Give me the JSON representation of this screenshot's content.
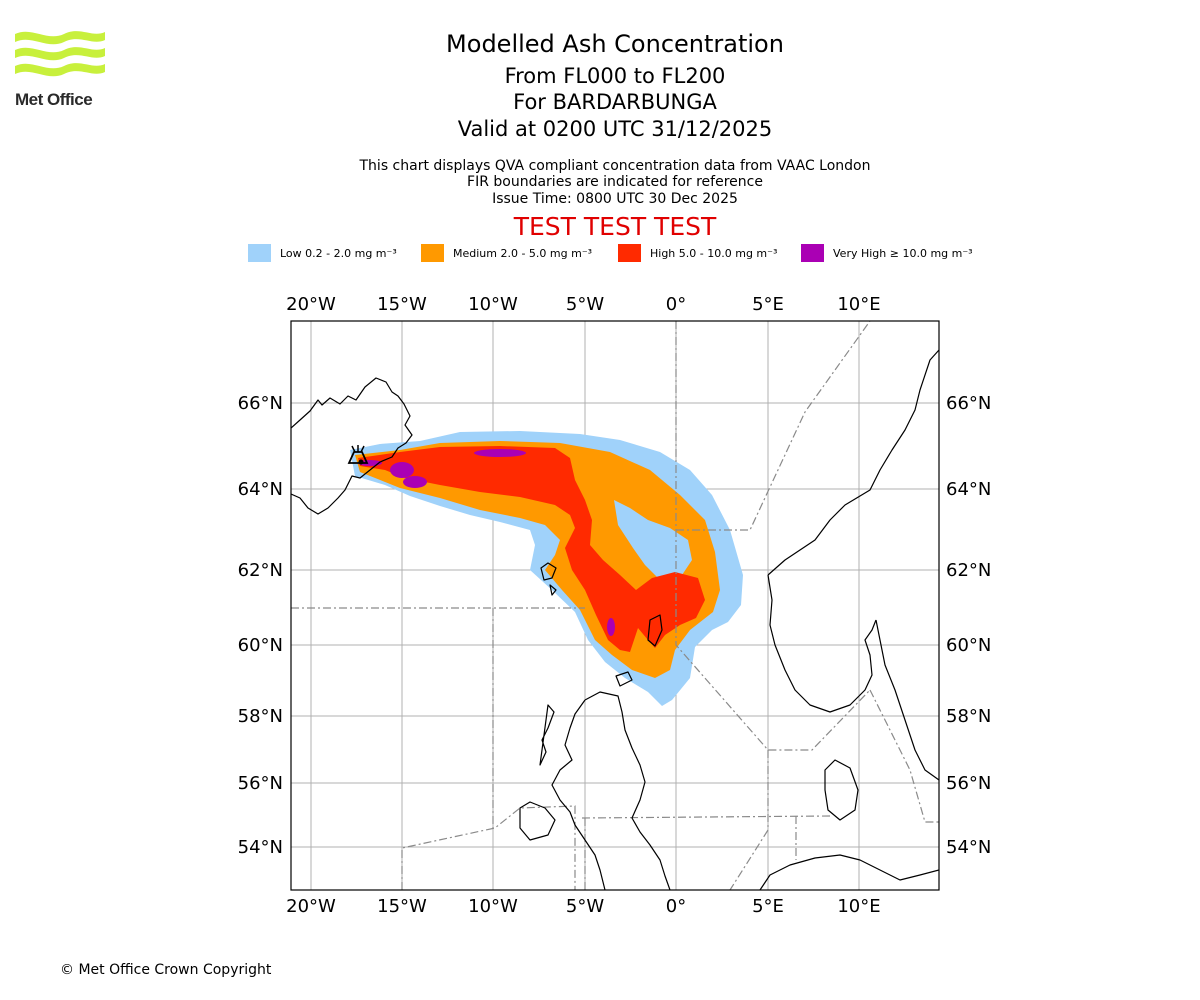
{
  "header": {
    "title": "Modelled Ash Concentration",
    "levels": "From FL000 to FL200",
    "volcano": "For BARDARBUNGA",
    "valid": "Valid at 0200 UTC 31/12/2025",
    "note1": "This chart displays QVA compliant concentration data from VAAC London",
    "note2": "FIR boundaries are indicated for reference",
    "issue": "Issue Time: 0800 UTC 30 Dec 2025",
    "test": "TEST TEST TEST"
  },
  "logo": {
    "text": "Met Office",
    "color": "#c8f03c",
    "icon": "met-office-wave-logo"
  },
  "legend": [
    {
      "label": "Low 0.2 - 2.0 mg m⁻³",
      "color": "#a0d2fa"
    },
    {
      "label": "Medium 2.0 - 5.0 mg m⁻³",
      "color": "#ff9900"
    },
    {
      "label": "High 5.0 - 10.0 mg m⁻³",
      "color": "#ff2a00"
    },
    {
      "label": "Very High ≥ 10.0 mg m⁻³",
      "color": "#aa00b4"
    }
  ],
  "map": {
    "lon_range": [
      -21,
      14.5
    ],
    "lat_range": [
      53,
      68
    ],
    "lon_ticks": [
      "20°W",
      "15°W",
      "10°W",
      "5°W",
      "0°",
      "5°E",
      "10°E"
    ],
    "lat_ticks": [
      "66°N",
      "64°N",
      "62°N",
      "60°N",
      "58°N",
      "56°N",
      "54°N"
    ],
    "volcano_marker": "volcano-icon"
  },
  "footer": {
    "copyright": "© Met Office Crown Copyright"
  }
}
